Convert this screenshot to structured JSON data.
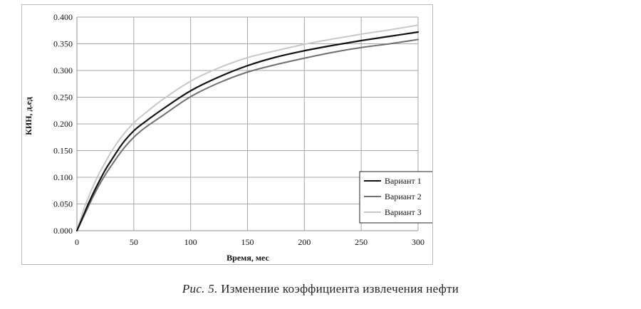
{
  "chart_data": {
    "type": "line",
    "xlabel": "Время, мес",
    "ylabel": "КИН, д.ед",
    "xlim": [
      0,
      300
    ],
    "ylim": [
      0,
      0.4
    ],
    "x_ticks": [
      "0",
      "50",
      "100",
      "150",
      "200",
      "250",
      "300"
    ],
    "y_ticks": [
      "0.000",
      "0.050",
      "0.100",
      "0.150",
      "0.200",
      "0.250",
      "0.300",
      "0.350",
      "0.400"
    ],
    "grid": true,
    "legend_position": "bottom-right",
    "series": [
      {
        "name": "Вариант 1",
        "color": "#111111",
        "x": [
          0,
          3,
          6,
          10,
          15,
          20,
          25,
          30,
          40,
          50,
          60,
          75,
          100,
          125,
          150,
          175,
          200,
          225,
          250,
          275,
          300
        ],
        "values": [
          0.0,
          0.015,
          0.03,
          0.05,
          0.073,
          0.094,
          0.114,
          0.131,
          0.163,
          0.187,
          0.204,
          0.227,
          0.262,
          0.288,
          0.309,
          0.325,
          0.337,
          0.347,
          0.356,
          0.364,
          0.372
        ]
      },
      {
        "name": "Вариант 2",
        "color": "#6f6f6f",
        "x": [
          0,
          3,
          6,
          10,
          15,
          20,
          25,
          30,
          40,
          50,
          60,
          75,
          100,
          125,
          150,
          175,
          200,
          225,
          250,
          275,
          300
        ],
        "values": [
          0.0,
          0.013,
          0.027,
          0.045,
          0.067,
          0.087,
          0.105,
          0.121,
          0.151,
          0.175,
          0.193,
          0.215,
          0.251,
          0.277,
          0.297,
          0.311,
          0.323,
          0.334,
          0.343,
          0.35,
          0.358
        ]
      },
      {
        "name": "Вариант 3",
        "color": "#c8c8c8",
        "x": [
          0,
          3,
          6,
          10,
          15,
          20,
          25,
          30,
          40,
          50,
          60,
          75,
          100,
          125,
          150,
          175,
          200,
          225,
          250,
          275,
          300
        ],
        "values": [
          0.0,
          0.02,
          0.04,
          0.062,
          0.087,
          0.109,
          0.128,
          0.147,
          0.178,
          0.202,
          0.22,
          0.245,
          0.28,
          0.305,
          0.324,
          0.337,
          0.349,
          0.359,
          0.368,
          0.376,
          0.385
        ]
      }
    ]
  },
  "caption": {
    "label": "Рис. 5.",
    "text": "Изменение коэффициента извлечения нефти"
  }
}
